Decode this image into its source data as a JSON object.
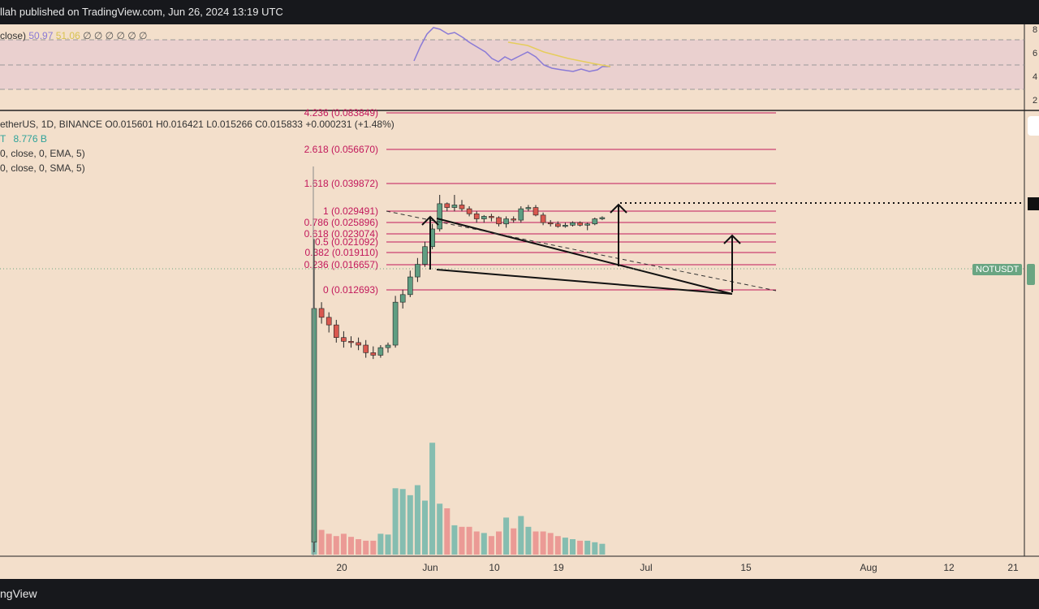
{
  "header": {
    "text": "llah published on TradingView.com, Jun 26, 2024 13:19 UTC"
  },
  "footer": {
    "brand": "ngView"
  },
  "rsi": {
    "label_prefix": "close)",
    "value1": "50.97",
    "value2": "51.06",
    "placeholders": "∅ ∅ ∅ ∅ ∅ ∅",
    "axis_ticks": [
      "8",
      "6",
      "4",
      "2"
    ]
  },
  "price_legend": {
    "symbol": "etherUS, 1D, BINANCE",
    "open": "O0.015601",
    "high": "H0.016421",
    "low": "L0.015266",
    "close": "C0.015833",
    "change": "+0.000231 (+1.48%)"
  },
  "volume_legend": {
    "prefix": "T",
    "value": "8.776 B"
  },
  "ema_legend": "0, close, 0, EMA, 5)",
  "sma_legend": "0, close, 0, SMA, 5)",
  "symbol_tag": "NOTUSDT",
  "colors": {
    "up": "#5f9e82",
    "down": "#d9584f",
    "fib": "#c2185b",
    "rsi": "#8a7ad6",
    "rsi_ma": "#e6cd5c",
    "vol_up": "#85bdb0",
    "vol_down": "#eb9a95"
  },
  "chart_data": {
    "type": "candlestick",
    "fib_levels": [
      {
        "ratio": "4.236",
        "price": 0.083849,
        "label": "4.236 (0.083849)"
      },
      {
        "ratio": "2.618",
        "price": 0.05667,
        "label": "2.618 (0.056670)"
      },
      {
        "ratio": "1.618",
        "price": 0.039872,
        "label": "1.618 (0.039872)"
      },
      {
        "ratio": "1",
        "price": 0.029491,
        "label": "1 (0.029491)"
      },
      {
        "ratio": "0.786",
        "price": 0.025896,
        "label": "0.786 (0.025896)"
      },
      {
        "ratio": "0.618",
        "price": 0.023074,
        "label": "0.618 (0.023074)"
      },
      {
        "ratio": "0.5",
        "price": 0.021092,
        "label": "0.5 (0.021092)"
      },
      {
        "ratio": "0.382",
        "price": 0.01911,
        "label": "0.382 (0.019110)"
      },
      {
        "ratio": "0.236",
        "price": 0.016657,
        "label": "0.236 (0.016657)"
      },
      {
        "ratio": "0",
        "price": 0.012693,
        "label": "0 (0.012693)"
      }
    ],
    "x_ticks": [
      "20",
      "Jun",
      "10",
      "19",
      "Jul",
      "15",
      "Aug",
      "12",
      "21"
    ],
    "candles": [
      {
        "o": 0.006,
        "h": 0.03,
        "l": 0.0052,
        "c": 0.0245,
        "v": 0.32
      },
      {
        "o": 0.0245,
        "h": 0.025,
        "l": 0.0233,
        "c": 0.0238,
        "v": 0.32
      },
      {
        "o": 0.0238,
        "h": 0.0242,
        "l": 0.0226,
        "c": 0.0232,
        "v": 0.27
      },
      {
        "o": 0.0232,
        "h": 0.0236,
        "l": 0.0218,
        "c": 0.0222,
        "v": 0.24
      },
      {
        "o": 0.0222,
        "h": 0.0227,
        "l": 0.0214,
        "c": 0.0219,
        "v": 0.27
      },
      {
        "o": 0.0219,
        "h": 0.0223,
        "l": 0.0214,
        "c": 0.0218,
        "v": 0.23
      },
      {
        "o": 0.0218,
        "h": 0.0222,
        "l": 0.0212,
        "c": 0.0216,
        "v": 0.2
      },
      {
        "o": 0.0216,
        "h": 0.022,
        "l": 0.0206,
        "c": 0.021,
        "v": 0.18
      },
      {
        "o": 0.021,
        "h": 0.0215,
        "l": 0.0205,
        "c": 0.0208,
        "v": 0.18
      },
      {
        "o": 0.0208,
        "h": 0.0216,
        "l": 0.0206,
        "c": 0.0214,
        "v": 0.27
      },
      {
        "o": 0.0214,
        "h": 0.0218,
        "l": 0.021,
        "c": 0.0216,
        "v": 0.26
      },
      {
        "o": 0.0216,
        "h": 0.0255,
        "l": 0.0214,
        "c": 0.025,
        "v": 0.86
      },
      {
        "o": 0.025,
        "h": 0.026,
        "l": 0.0245,
        "c": 0.0256,
        "v": 0.85
      },
      {
        "o": 0.0256,
        "h": 0.0275,
        "l": 0.0254,
        "c": 0.027,
        "v": 0.77
      },
      {
        "o": 0.027,
        "h": 0.0285,
        "l": 0.0266,
        "c": 0.028,
        "v": 0.9
      },
      {
        "o": 0.028,
        "h": 0.0298,
        "l": 0.0278,
        "c": 0.0294,
        "v": 0.7
      },
      {
        "o": 0.0294,
        "h": 0.0312,
        "l": 0.0292,
        "c": 0.0308,
        "v": 1.45
      },
      {
        "o": 0.0308,
        "h": 0.0335,
        "l": 0.0306,
        "c": 0.0328,
        "v": 0.66
      },
      {
        "o": 0.0328,
        "h": 0.0329,
        "l": 0.0322,
        "c": 0.0325,
        "v": 0.6
      },
      {
        "o": 0.0325,
        "h": 0.0335,
        "l": 0.0322,
        "c": 0.0327,
        "v": 0.38
      },
      {
        "o": 0.0327,
        "h": 0.0331,
        "l": 0.0322,
        "c": 0.0324,
        "v": 0.36
      },
      {
        "o": 0.0324,
        "h": 0.0326,
        "l": 0.0318,
        "c": 0.032,
        "v": 0.36
      },
      {
        "o": 0.032,
        "h": 0.0322,
        "l": 0.0313,
        "c": 0.0316,
        "v": 0.3
      },
      {
        "o": 0.0316,
        "h": 0.0319,
        "l": 0.0313,
        "c": 0.0318,
        "v": 0.28
      },
      {
        "o": 0.0318,
        "h": 0.032,
        "l": 0.0314,
        "c": 0.0317,
        "v": 0.24
      },
      {
        "o": 0.0317,
        "h": 0.0318,
        "l": 0.031,
        "c": 0.0312,
        "v": 0.3
      },
      {
        "o": 0.0312,
        "h": 0.0318,
        "l": 0.0309,
        "c": 0.0316,
        "v": 0.48
      },
      {
        "o": 0.0316,
        "h": 0.0318,
        "l": 0.0313,
        "c": 0.0315,
        "v": 0.34
      },
      {
        "o": 0.0315,
        "h": 0.0326,
        "l": 0.0313,
        "c": 0.0324,
        "v": 0.5
      },
      {
        "o": 0.0324,
        "h": 0.0327,
        "l": 0.0322,
        "c": 0.0325,
        "v": 0.36
      },
      {
        "o": 0.0325,
        "h": 0.0327,
        "l": 0.0318,
        "c": 0.0319,
        "v": 0.3
      },
      {
        "o": 0.0319,
        "h": 0.0321,
        "l": 0.0311,
        "c": 0.0313,
        "v": 0.3
      },
      {
        "o": 0.0313,
        "h": 0.0315,
        "l": 0.031,
        "c": 0.0312,
        "v": 0.28
      },
      {
        "o": 0.0312,
        "h": 0.0314,
        "l": 0.0309,
        "c": 0.031,
        "v": 0.24
      },
      {
        "o": 0.031,
        "h": 0.0313,
        "l": 0.0309,
        "c": 0.0311,
        "v": 0.22
      },
      {
        "o": 0.0311,
        "h": 0.0314,
        "l": 0.031,
        "c": 0.0313,
        "v": 0.2
      },
      {
        "o": 0.0313,
        "h": 0.0314,
        "l": 0.031,
        "c": 0.0311,
        "v": 0.18
      },
      {
        "o": 0.0311,
        "h": 0.0313,
        "l": 0.0307,
        "c": 0.0312,
        "v": 0.18
      },
      {
        "o": 0.0312,
        "h": 0.0317,
        "l": 0.0311,
        "c": 0.0316,
        "v": 0.16
      },
      {
        "o": 0.0316,
        "h": 0.0318,
        "l": 0.0315,
        "c": 0.0317,
        "v": 0.14
      }
    ]
  }
}
